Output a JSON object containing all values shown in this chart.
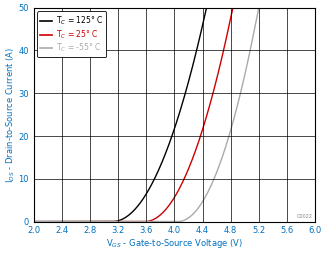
{
  "xlabel": "V$_{GS}$ - Gate-to-Source Voltage (V)",
  "ylabel": "I$_{DS}$ - Drain-to-Source Current (A)",
  "xlim": [
    2,
    6
  ],
  "ylim": [
    0,
    50
  ],
  "xticks": [
    2,
    2.4,
    2.8,
    3.2,
    3.6,
    4.0,
    4.4,
    4.8,
    5.2,
    5.6,
    6.0
  ],
  "yticks": [
    0,
    10,
    20,
    30,
    40,
    50
  ],
  "legend": [
    {
      "label": "T$_C$ = 125° C",
      "color": "#000000"
    },
    {
      "label": "T$_C$ = 25° C",
      "color": "#cc0000"
    },
    {
      "label": "T$_C$ = -55° C",
      "color": "#aaaaaa"
    }
  ],
  "curves": [
    {
      "color": "#000000",
      "vth": 3.12,
      "k": 28.0,
      "exp": 2.0
    },
    {
      "color": "#cc0000",
      "vth": 3.58,
      "k": 32.0,
      "exp": 2.0
    },
    {
      "color": "#aaaaaa",
      "vth": 4.05,
      "k": 38.0,
      "exp": 2.0
    }
  ],
  "watermark": "C0022",
  "bg_color": "#ffffff",
  "tick_color": "#0070c0",
  "label_color": "#0070c0",
  "tick_fontsize": 6,
  "label_fontsize": 6,
  "legend_fontsize": 5.5
}
